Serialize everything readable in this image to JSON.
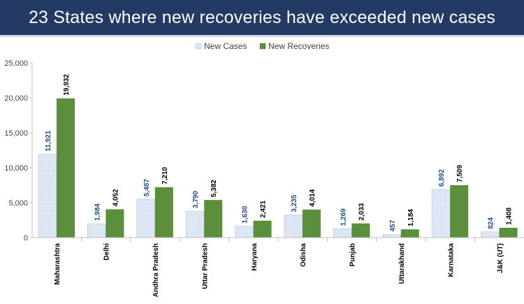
{
  "banner": {
    "title": "23 States where new recoveries have exceeded new cases"
  },
  "colors": {
    "banner_bg": "#233a64",
    "new_cases": "#dbe7f5",
    "new_cases_stroke": "#aac4e2",
    "new_recoveries": "#5b8f3b",
    "cases_label": "#1f4e8c",
    "recoveries_label": "#000000"
  },
  "chart_data": {
    "type": "bar",
    "title": "23 States where new recoveries have exceeded new cases",
    "xlabel": "",
    "ylabel": "",
    "ylim": [
      0,
      25000
    ],
    "yticks": [
      0,
      5000,
      10000,
      15000,
      20000,
      25000
    ],
    "ytick_labels": [
      "0",
      "5,000",
      "10,000",
      "15,000",
      "20,000",
      "25,000"
    ],
    "grid": false,
    "legend_position": "top-center",
    "categories": [
      "Maharashtra",
      "Delhi",
      "Andhra Pradesh",
      "Uttar Pradesh",
      "Haryana",
      "Odisha",
      "Punjab",
      "Uttarakhand",
      "Karnataka",
      "J&K (UT)"
    ],
    "series": [
      {
        "name": "New Cases",
        "values": [
          11921,
          1984,
          5487,
          3790,
          1630,
          3235,
          1269,
          457,
          6892,
          824
        ],
        "labels": [
          "11,921",
          "1,984",
          "5,487",
          "3,790",
          "1,630",
          "3,235",
          "1,269",
          "457",
          "6,892",
          "824"
        ]
      },
      {
        "name": "New Recoveries",
        "values": [
          19932,
          4052,
          7210,
          5382,
          2421,
          4014,
          2033,
          1184,
          7509,
          1408
        ],
        "labels": [
          "19,932",
          "4,052",
          "7,210",
          "5,382",
          "2,421",
          "4,014",
          "2,033",
          "1,184",
          "7,509",
          "1,408"
        ]
      }
    ]
  }
}
